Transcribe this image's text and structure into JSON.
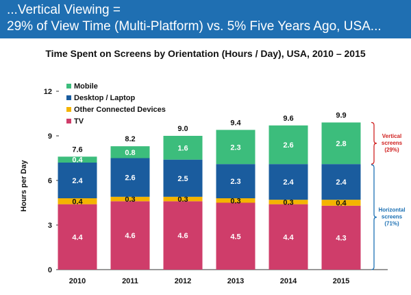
{
  "header": {
    "line1": "...Vertical Viewing =",
    "line2": "29% of View Time (Multi-Platform) vs. 5% Five Years Ago, USA..."
  },
  "chart_data": {
    "type": "bar",
    "stacked": true,
    "title": "Time Spent on Screens by Orientation (Hours / Day), USA, 2010 – 2015",
    "ylabel": "Hours per Day",
    "xlabel": "",
    "ylim": [
      0,
      12
    ],
    "yticks": [
      0,
      3,
      6,
      9,
      12
    ],
    "categories": [
      "2010",
      "2011",
      "2012",
      "2013",
      "2014",
      "2015"
    ],
    "series": [
      {
        "name": "TV",
        "color": "#cf3d6a",
        "values": [
          4.4,
          4.6,
          4.6,
          4.5,
          4.4,
          4.3
        ]
      },
      {
        "name": "Other Connected Devices",
        "color": "#f4b400",
        "values": [
          0.4,
          0.3,
          0.3,
          0.3,
          0.3,
          0.4
        ]
      },
      {
        "name": "Desktop / Laptop",
        "color": "#1a5c9e",
        "values": [
          2.4,
          2.6,
          2.5,
          2.3,
          2.4,
          2.4
        ]
      },
      {
        "name": "Mobile",
        "color": "#3cbd7c",
        "values": [
          0.4,
          0.8,
          1.6,
          2.3,
          2.6,
          2.8
        ]
      }
    ],
    "totals": [
      "7.6",
      "8.2",
      "9.0",
      "9.4",
      "9.6",
      "9.9"
    ],
    "legend": {
      "position": "top-left",
      "order": [
        "Mobile",
        "Desktop / Laptop",
        "Other Connected Devices",
        "TV"
      ]
    },
    "grid": false,
    "annotations": {
      "vertical": {
        "line1": "Vertical",
        "line2": "screens",
        "line3": "(29%)",
        "color": "#d0201f"
      },
      "horizontal": {
        "line1": "Horizontal",
        "line2": "screens",
        "line3": "(71%)",
        "color": "#1a6fb3"
      }
    }
  }
}
